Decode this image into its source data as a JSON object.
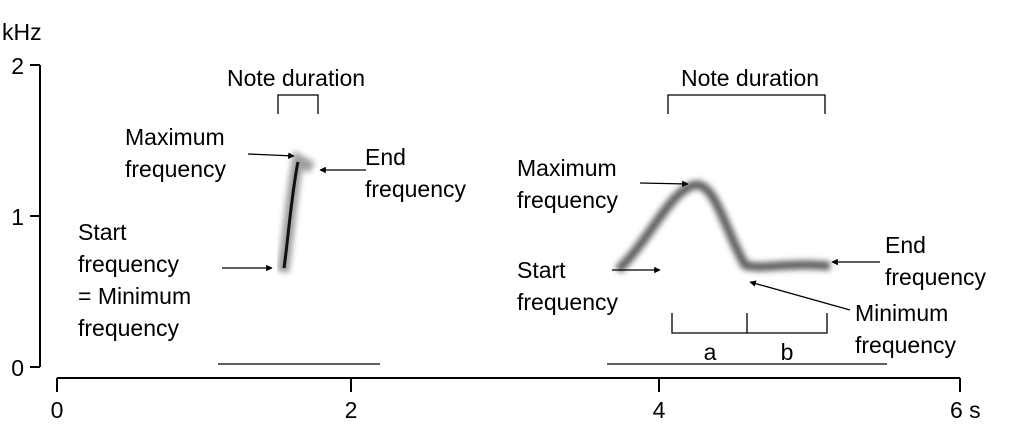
{
  "axes": {
    "y_unit": "kHz",
    "y_ticks": [
      "2",
      "1",
      "0"
    ],
    "x_ticks": [
      "0",
      "2",
      "4",
      "6 s"
    ]
  },
  "annotations": [
    {
      "lines": [
        "Note duration"
      ]
    },
    {
      "lines": [
        "Maximum",
        "frequency"
      ]
    },
    {
      "lines": [
        "End",
        "frequency"
      ]
    },
    {
      "lines": [
        "Start",
        "frequency",
        "= Minimum",
        "frequency"
      ]
    },
    {
      "lines": [
        "Note duration"
      ]
    },
    {
      "lines": [
        "Maximum",
        "frequency"
      ]
    },
    {
      "lines": [
        "Start",
        "frequency"
      ]
    },
    {
      "lines": [
        "End",
        "frequency"
      ]
    },
    {
      "lines": [
        "Minimum",
        "frequency"
      ]
    },
    {
      "lines": [
        "a"
      ]
    },
    {
      "lines": [
        "b"
      ]
    }
  ]
}
